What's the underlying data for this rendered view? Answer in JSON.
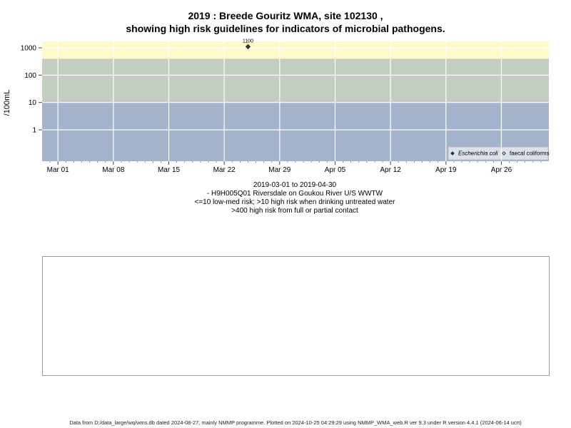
{
  "chart_data": {
    "type": "scatter",
    "title_line1": "2019 : Breede Gouritz WMA, site 102130 ,",
    "title_line2": "showing high risk guidelines for indicators of microbial pathogens.",
    "ylabel": "/100mL",
    "yscale": "log",
    "y_ticks": [
      "1",
      "10",
      "100",
      "1000"
    ],
    "x_ticks": [
      "Mar 01",
      "Mar 08",
      "Mar 15",
      "Mar 22",
      "Mar 29",
      "Apr 05",
      "Apr 12",
      "Apr 19",
      "Apr 26"
    ],
    "x_tick_dates": [
      "2019-03-01",
      "2019-03-08",
      "2019-03-15",
      "2019-03-22",
      "2019-03-29",
      "2019-04-05",
      "2019-04-12",
      "2019-04-19",
      "2019-04-26"
    ],
    "xlim": [
      "2018-02-26",
      "2019-05-02"
    ],
    "ylim": [
      0.3,
      2000
    ],
    "bands": [
      {
        "from": 0,
        "to": 10,
        "color": "#a3b3cc"
      },
      {
        "from": 10,
        "to": 400,
        "color": "#c3cdc1"
      },
      {
        "from": 400,
        "to": 2000,
        "color": "#fffacc"
      }
    ],
    "grid": true,
    "legend_position": "bottom-right",
    "series": [
      {
        "name": "Escherichia coli",
        "marker": "filled-diamond",
        "color": "#333333",
        "points": [
          {
            "x": "2019-03-25",
            "y": 1100,
            "label": "1100"
          }
        ]
      },
      {
        "name": "faecal coliforms",
        "marker": "open-diamond",
        "color": "#333333",
        "points": []
      }
    ]
  },
  "subtitle": {
    "range": "2019-03-01 to 2019-04-30",
    "site": "- H9H005Q01 Riversdale on Goukou River U/S WWTW",
    "risk_low": "<=10 low-med risk; >10 high risk when drinking untreated water",
    "risk_high": ">400 high risk from full or partial contact"
  },
  "footer": "Data from D:/data_large/wq/wms.db dated 2024-08-27, mainly NMMP programme. Plotted on 2024-10-25 04:29:29 using NMMP_WMA_web.R ver 9.3 under R version 4.4.1 (2024-06-14 ucrt)"
}
